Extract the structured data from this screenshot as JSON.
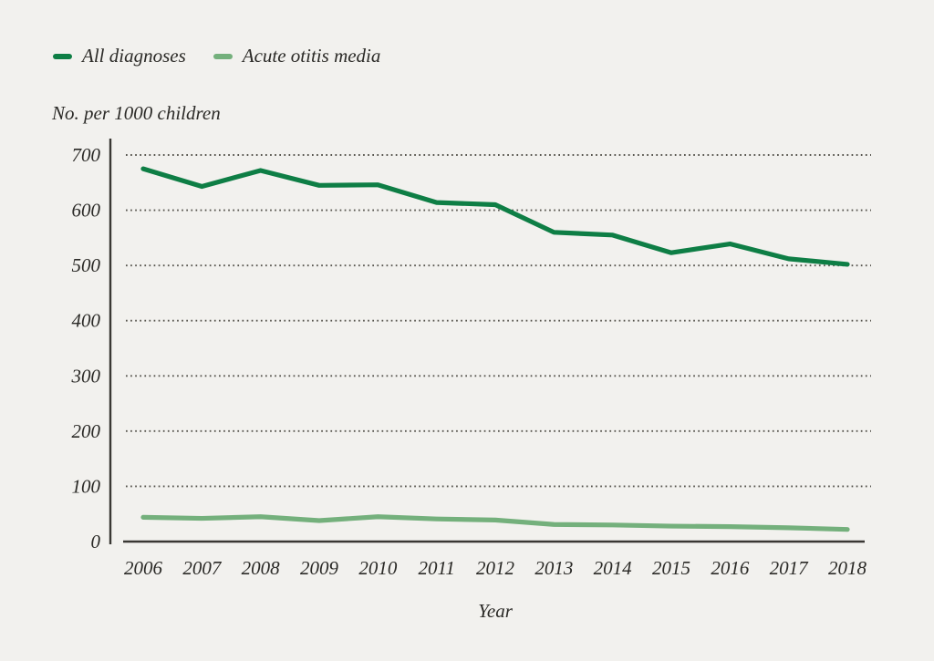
{
  "figure": {
    "background_color": "#F2F1EE",
    "text_color": "#2B2A27",
    "axis_color": "#3A3834",
    "gridline_color": "#56544D"
  },
  "chart_data": {
    "type": "line",
    "title": "",
    "ylabel": "No. per 1000 children",
    "xlabel": "Year",
    "x": [
      2006,
      2007,
      2008,
      2009,
      2010,
      2011,
      2012,
      2013,
      2014,
      2015,
      2016,
      2017,
      2018
    ],
    "series": [
      {
        "name": "All diagnoses",
        "color": "#0E7E45",
        "values": [
          675,
          643,
          672,
          645,
          646,
          614,
          610,
          560,
          555,
          523,
          539,
          512,
          502
        ]
      },
      {
        "name": "Acute otitis media",
        "color": "#74B07C",
        "values": [
          44,
          42,
          45,
          38,
          45,
          41,
          39,
          31,
          30,
          28,
          27,
          25,
          22
        ]
      }
    ],
    "ylim": [
      0,
      700
    ],
    "yticks": [
      0,
      100,
      200,
      300,
      400,
      500,
      600,
      700
    ],
    "grid": "horizontal-dotted",
    "legend_position": "top-left"
  }
}
